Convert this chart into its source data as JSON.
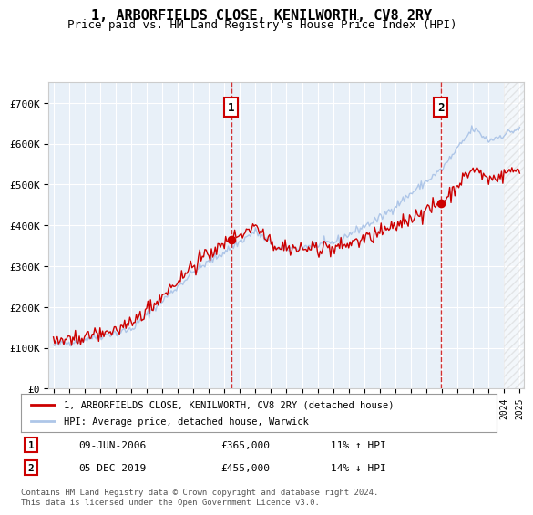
{
  "title": "1, ARBORFIELDS CLOSE, KENILWORTH, CV8 2RY",
  "subtitle": "Price paid vs. HM Land Registry's House Price Index (HPI)",
  "legend_line1": "1, ARBORFIELDS CLOSE, KENILWORTH, CV8 2RY (detached house)",
  "legend_line2": "HPI: Average price, detached house, Warwick",
  "annotation1_label": "1",
  "annotation1_date": "09-JUN-2006",
  "annotation1_price": "£365,000",
  "annotation1_hpi": "11% ↑ HPI",
  "annotation2_label": "2",
  "annotation2_date": "05-DEC-2019",
  "annotation2_price": "£455,000",
  "annotation2_hpi": "14% ↓ HPI",
  "footer": "Contains HM Land Registry data © Crown copyright and database right 2024.\nThis data is licensed under the Open Government Licence v3.0.",
  "hpi_color": "#aec6e8",
  "price_color": "#cc0000",
  "plot_bg": "#e8f0f8",
  "annotation_color": "#cc0000",
  "sale1_year": 2006.44,
  "sale1_price": 365000,
  "sale2_year": 2019.92,
  "sale2_price": 455000,
  "ylim": [
    0,
    750000
  ],
  "xlim_start": 1995,
  "xlim_end": 2025
}
